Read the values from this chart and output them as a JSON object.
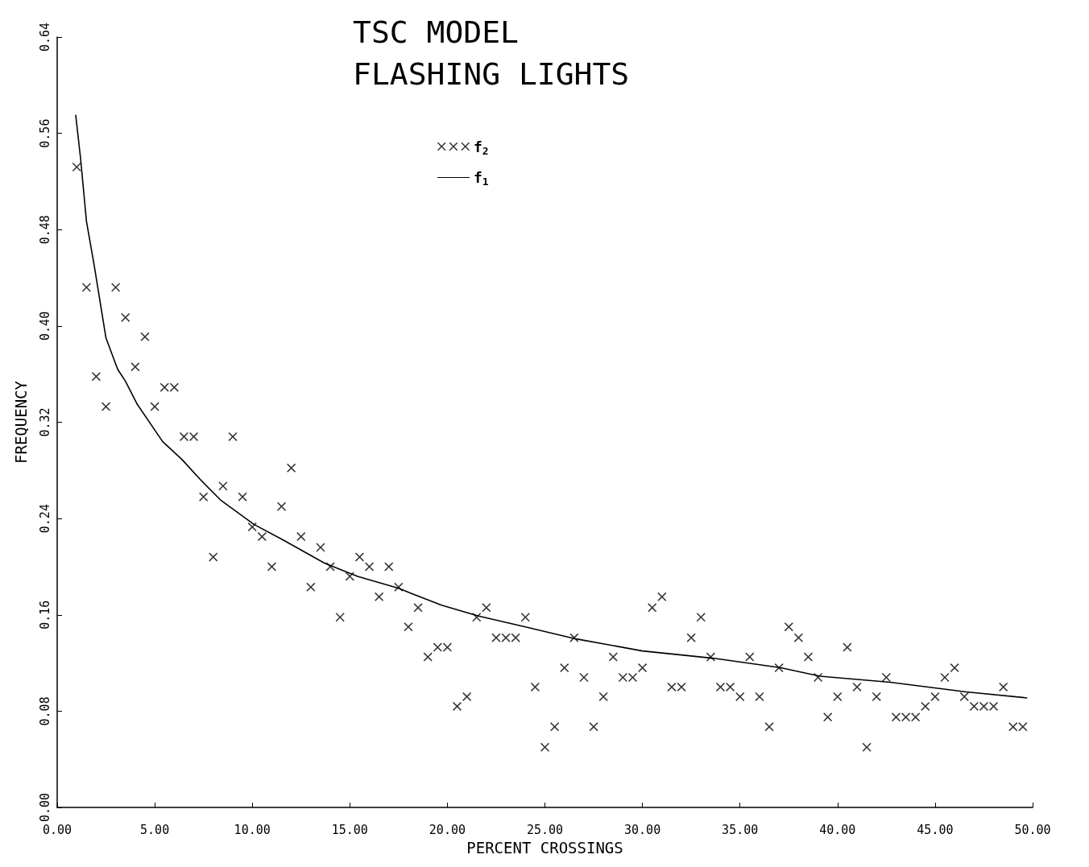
{
  "chart_data": {
    "type": "scatter",
    "title": "TSC MODEL",
    "subtitle": "FLASHING LIGHTS",
    "xlabel": "PERCENT CROSSINGS",
    "ylabel": "FREQUENCY",
    "xlim": [
      0,
      50
    ],
    "ylim": [
      0,
      0.64
    ],
    "xticks": [
      {
        "value": 0,
        "label": "0.00"
      },
      {
        "value": 5,
        "label": "5.00"
      },
      {
        "value": 10,
        "label": "10.00"
      },
      {
        "value": 15,
        "label": "15.00"
      },
      {
        "value": 20,
        "label": "20.00"
      },
      {
        "value": 25,
        "label": "25.00"
      },
      {
        "value": 30,
        "label": "30.00"
      },
      {
        "value": 35,
        "label": "35.00"
      },
      {
        "value": 40,
        "label": "40.00"
      },
      {
        "value": 45,
        "label": "45.00"
      },
      {
        "value": 50,
        "label": "50.00"
      }
    ],
    "yticks": [
      {
        "value": 0,
        "label": "0.00"
      },
      {
        "value": 0.08,
        "label": "0.08"
      },
      {
        "value": 0.16,
        "label": "0.16"
      },
      {
        "value": 0.24,
        "label": "0.24"
      },
      {
        "value": 0.32,
        "label": "0.32"
      },
      {
        "value": 0.4,
        "label": "0.40"
      },
      {
        "value": 0.48,
        "label": "0.48"
      },
      {
        "value": 0.56,
        "label": "0.56"
      },
      {
        "value": 0.64,
        "label": "0.64"
      }
    ],
    "grid": false,
    "legend": "top",
    "marker": "cross",
    "series": [
      {
        "name": "f$_{2}$",
        "color": "#000000",
        "x": [
          1,
          1.5,
          2,
          2.5,
          3,
          3.5,
          4,
          4.5,
          5,
          5.5,
          6,
          6.5,
          7,
          7.5,
          8,
          8.5,
          9,
          9.5,
          10,
          10.5,
          11,
          11.5,
          12,
          12.5,
          13,
          13.5,
          14,
          14.5,
          15,
          15.5,
          16,
          16.5,
          17,
          17.5,
          18,
          18.5,
          19,
          19.5,
          20,
          20.5,
          21,
          21.5,
          22,
          22.5,
          23,
          23.5,
          24,
          24.5,
          25,
          25.5,
          26,
          26.5,
          27,
          27.5,
          28,
          28.5,
          29,
          29.5,
          30,
          30.5,
          31,
          31.5,
          32,
          32.5,
          33,
          33.5,
          34,
          34.5,
          35,
          35.5,
          36,
          36.5,
          37,
          37.5,
          38,
          38.5,
          39,
          39.5,
          40,
          40.5,
          41,
          41.5,
          42,
          42.5,
          43,
          43.5,
          44,
          44.5,
          45,
          45.5,
          46,
          46.5,
          47,
          47.5,
          48,
          48.5,
          49,
          49.5
        ],
        "values": [
          0.532,
          0.432,
          0.358,
          0.333,
          0.432,
          0.407,
          0.366,
          0.391,
          0.333,
          0.349,
          0.349,
          0.308,
          0.308,
          0.258,
          0.208,
          0.267,
          0.308,
          0.258,
          0.233,
          0.225,
          0.2,
          0.25,
          0.282,
          0.225,
          0.183,
          0.216,
          0.2,
          0.158,
          0.192,
          0.208,
          0.2,
          0.175,
          0.2,
          0.183,
          0.15,
          0.166,
          0.125,
          0.133,
          0.133,
          0.084,
          0.092,
          0.158,
          0.166,
          0.141,
          0.141,
          0.141,
          0.158,
          0.1,
          0.05,
          0.067,
          0.116,
          0.141,
          0.108,
          0.067,
          0.092,
          0.125,
          0.108,
          0.108,
          0.116,
          0.166,
          0.175,
          0.1,
          0.1,
          0.141,
          0.158,
          0.125,
          0.1,
          0.1,
          0.092,
          0.125,
          0.092,
          0.067,
          0.116,
          0.15,
          0.141,
          0.125,
          0.108,
          0.075,
          0.092,
          0.133,
          0.1,
          0.05,
          0.092,
          0.108,
          0.075,
          0.075,
          0.075,
          0.084,
          0.092,
          0.108,
          0.116,
          0.092,
          0.084,
          0.084,
          0.084,
          0.1,
          0.067,
          0.067
        ]
      },
      {
        "name": "f$_{1}$",
        "type": "line",
        "color": "#000000",
        "line_style": "solid",
        "marker": "none",
        "x": [
          0.95,
          1.2,
          1.5,
          1.9,
          2.5,
          3.1,
          3.5,
          4.1,
          5.4,
          6.4,
          7.3,
          8.4,
          10.1,
          11.6,
          13.7,
          15.4,
          17.5,
          19.7,
          21.6,
          24,
          26.6,
          30,
          33.6,
          37.1,
          39.1,
          42.7,
          46.6,
          49.7
        ],
        "values": [
          0.575,
          0.539,
          0.487,
          0.45,
          0.39,
          0.364,
          0.354,
          0.335,
          0.304,
          0.289,
          0.273,
          0.255,
          0.235,
          0.222,
          0.203,
          0.192,
          0.182,
          0.168,
          0.159,
          0.15,
          0.14,
          0.13,
          0.124,
          0.116,
          0.109,
          0.104,
          0.096,
          0.091
        ]
      }
    ]
  }
}
